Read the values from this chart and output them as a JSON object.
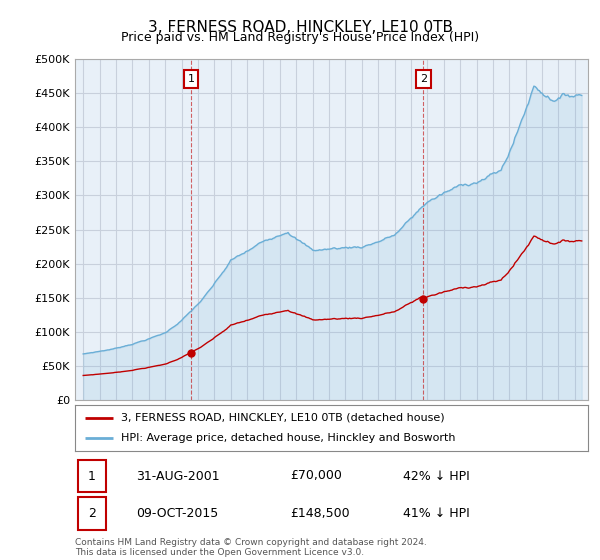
{
  "title": "3, FERNESS ROAD, HINCKLEY, LE10 0TB",
  "subtitle": "Price paid vs. HM Land Registry's House Price Index (HPI)",
  "hpi_label": "HPI: Average price, detached house, Hinckley and Bosworth",
  "property_label": "3, FERNESS ROAD, HINCKLEY, LE10 0TB (detached house)",
  "footnote": "Contains HM Land Registry data © Crown copyright and database right 2024.\nThis data is licensed under the Open Government Licence v3.0.",
  "hpi_color": "#6aaed6",
  "price_color": "#c00000",
  "sale1_year_float": 2001.583,
  "sale1_price": 70000,
  "sale1_date_str": "31-AUG-2001",
  "sale1_pct_str": "42% ↓ HPI",
  "sale2_year_float": 2015.75,
  "sale2_price": 148500,
  "sale2_date_str": "09-OCT-2015",
  "sale2_pct_str": "41% ↓ HPI",
  "ylim": [
    0,
    500000
  ],
  "yticks": [
    0,
    50000,
    100000,
    150000,
    200000,
    250000,
    300000,
    350000,
    400000,
    450000,
    500000
  ],
  "xlim_start": 1994.5,
  "xlim_end": 2025.8,
  "background_color": "#ffffff",
  "plot_bg_color": "#e8f0f8",
  "grid_color": "#c8d0dc"
}
